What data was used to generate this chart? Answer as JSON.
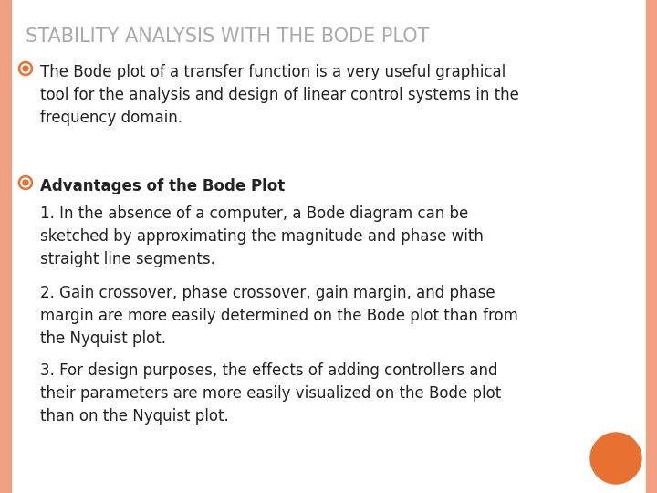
{
  "title": "STABILITY ANALYSIS WITH THE BODE PLOT",
  "title_color": "#aaaaaa",
  "title_fontsize": 15,
  "background_color": "#FFFFFF",
  "border_color": "#F0A080",
  "bullet_color": "#E87030",
  "body_text_color": "#222222",
  "body_fontsize": 12,
  "bold_fontsize": 12,
  "bullet1_text": "The Bode plot of a transfer function is a very useful graphical\ntool for the analysis and design of linear control systems in the\nfrequency domain.",
  "bullet2_text": "Advantages of the Bode Plot",
  "point1_text": "1. In the absence of a computer, a Bode diagram can be\nsketched by approximating the magnitude and phase with\nstraight line segments.",
  "point2_text": "2. Gain crossover, phase crossover, gain margin, and phase\nmargin are more easily determined on the Bode plot than from\nthe Nyquist plot.",
  "point3_text": "3. For design purposes, the effects of adding controllers and\ntheir parameters are more easily visualized on the Bode plot\nthan on the Nyquist plot.",
  "circle_color": "#E87030",
  "border_width": 12
}
